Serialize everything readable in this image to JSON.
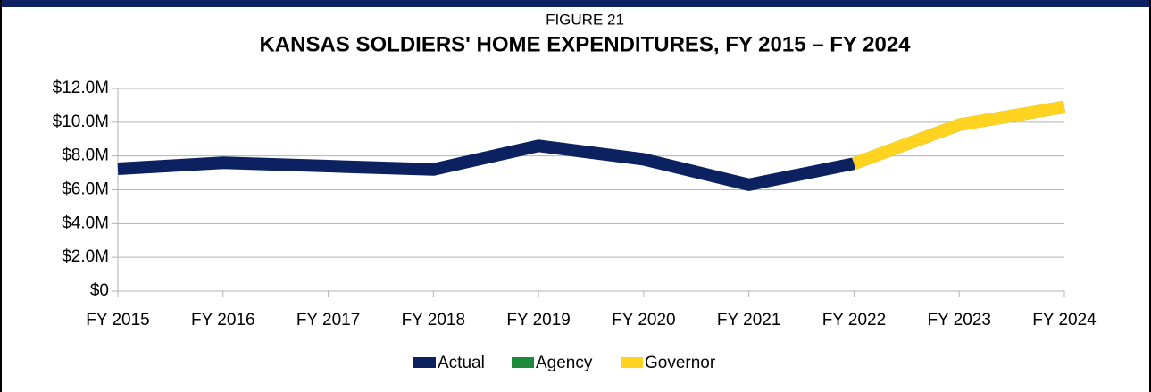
{
  "chart_data": {
    "type": "line",
    "subtitle": "FIGURE 21",
    "title": "KANSAS SOLDIERS' HOME EXPENDITURES, FY 2015 – FY 2024",
    "categories": [
      "FY 2015",
      "FY 2016",
      "FY 2017",
      "FY 2018",
      "FY 2019",
      "FY 2020",
      "FY 2021",
      "FY 2022",
      "FY 2023",
      "FY 2024"
    ],
    "series": [
      {
        "name": "Actual",
        "color": "#0b2160",
        "values": [
          7240000,
          7600000,
          7400000,
          7200000,
          8600000,
          7800000,
          6300000,
          7550000,
          null,
          null
        ]
      },
      {
        "name": "Agency",
        "color": "#1e8a3c",
        "values": [
          null,
          null,
          null,
          null,
          null,
          null,
          null,
          7550000,
          9850000,
          10900000
        ]
      },
      {
        "name": "Governor",
        "color": "#ffd320",
        "values": [
          null,
          null,
          null,
          null,
          null,
          null,
          null,
          7550000,
          9850000,
          10900000
        ]
      }
    ],
    "ylim": [
      0,
      12000000
    ],
    "yticks": [
      {
        "value": 0,
        "label": "$0"
      },
      {
        "value": 2000000,
        "label": "$2.0M"
      },
      {
        "value": 4000000,
        "label": "$4.0M"
      },
      {
        "value": 6000000,
        "label": "$6.0M"
      },
      {
        "value": 8000000,
        "label": "$8.0M"
      },
      {
        "value": 10000000,
        "label": "$10.0M"
      },
      {
        "value": 12000000,
        "label": "$12.0M"
      }
    ],
    "grid": true,
    "legend": "bottom"
  }
}
